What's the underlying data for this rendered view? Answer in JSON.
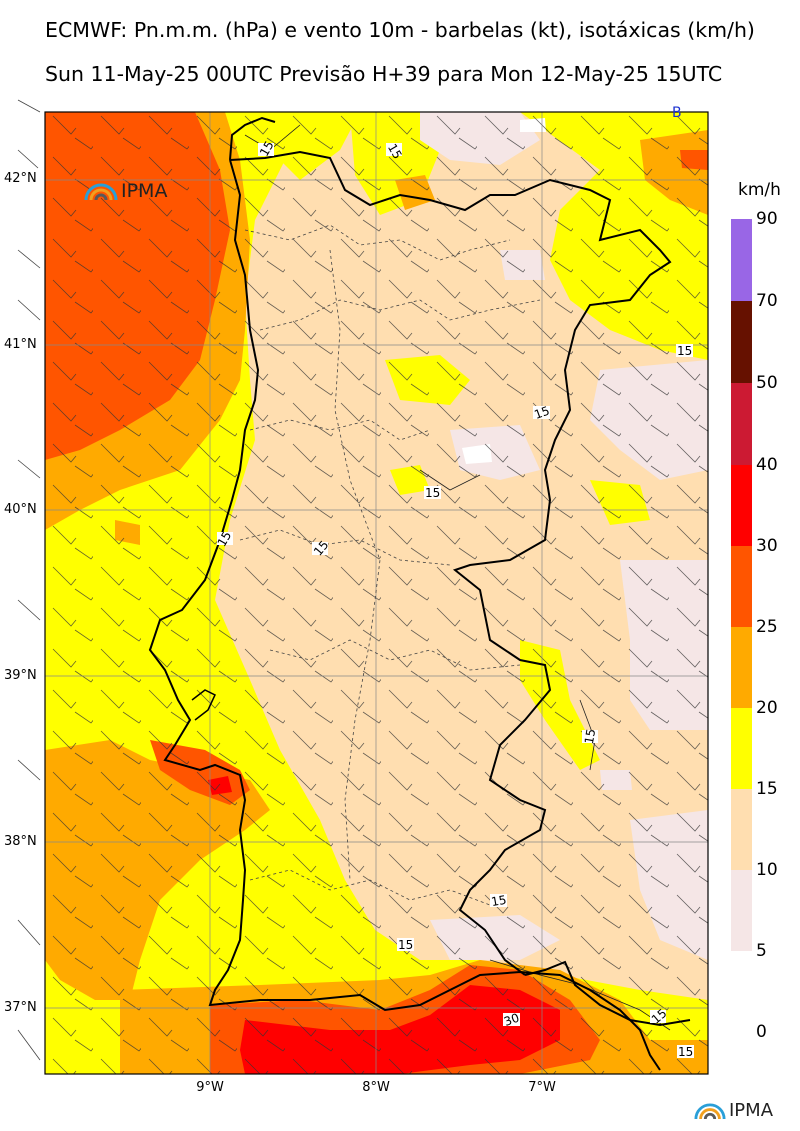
{
  "header": {
    "title": "ECMWF: Pn.m.m. (hPa) e vento 10m - barbelas (kt), isotáxicas (km/h)",
    "subtitle": "Sun 11-May-25 00UTC Previsão H+39 para Mon 12-May-25 15UTC"
  },
  "map": {
    "lat_labels": [
      "42°N",
      "41°N",
      "40°N",
      "39°N",
      "38°N",
      "37°N"
    ],
    "lon_labels": [
      "9°W",
      "8°W",
      "7°W"
    ],
    "contour_labels": [
      "15",
      "15",
      "15",
      "15",
      "15",
      "15",
      "15",
      "15",
      "15",
      "15",
      "15",
      "30",
      "15",
      "15"
    ],
    "pressure_marker": "B",
    "logo_text": "IPMA"
  },
  "colorbar": {
    "unit": "km/h",
    "levels": [
      "90",
      "70",
      "50",
      "40",
      "30",
      "25",
      "20",
      "15",
      "10",
      "5",
      "0"
    ],
    "colors": [
      "#9966e6",
      "#661100",
      "#cc1a33",
      "#ff0000",
      "#ff5500",
      "#ffaa00",
      "#ffff00",
      "#ffdeb0",
      "#f5e6e6"
    ]
  },
  "footer": {
    "logo_text": "IPMA"
  },
  "colors": {
    "calm": "#f5e6e6",
    "light": "#ffdeb0",
    "moderate": "#ffff00",
    "fresh": "#ffaa00",
    "strong": "#ff5500",
    "very_strong": "#ff0000",
    "border": "#000000",
    "ipma_blue": "#2a9fd8"
  }
}
